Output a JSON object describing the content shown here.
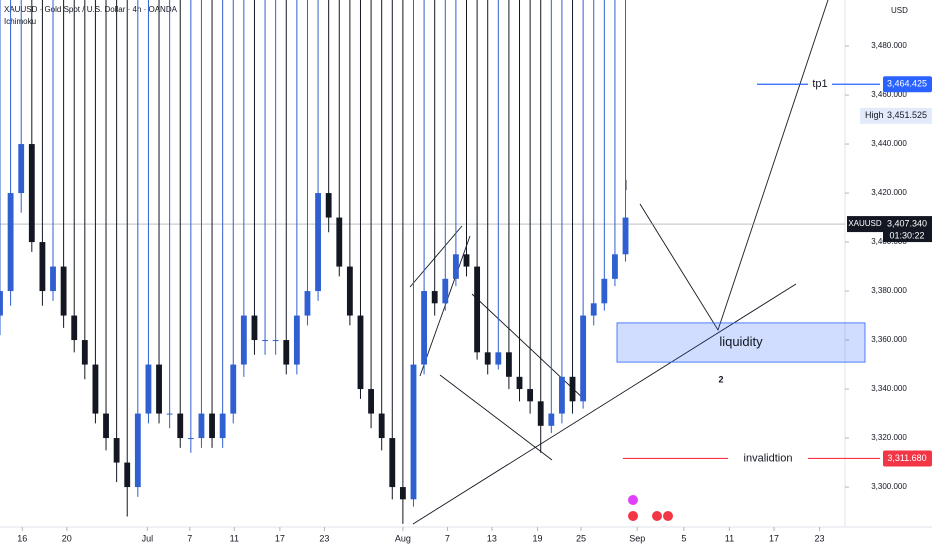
{
  "chart_data": {
    "type": "candlestick",
    "title": "XAUUSD · Gold Spot / U.S. Dollar · 4h · OANDA",
    "subtitle": "Ichimoku",
    "currency": "USD",
    "up_color": "#2f5fd0",
    "down_color": "#131722",
    "x": [
      0,
      1,
      2,
      3,
      4,
      5,
      6,
      7,
      8,
      9,
      10,
      11,
      12,
      13,
      14,
      15,
      16,
      17,
      18,
      19,
      20,
      21,
      22,
      23,
      24,
      25,
      26,
      27,
      28,
      29,
      30,
      31,
      32,
      33,
      34,
      35,
      36,
      37,
      38,
      39,
      40,
      41,
      42,
      43,
      44,
      45,
      46,
      47,
      48,
      49,
      50,
      51,
      52,
      53,
      54,
      55,
      56,
      57,
      58,
      59
    ],
    "open": [
      3370,
      3380,
      3420,
      3440,
      3400,
      3380,
      3390,
      3370,
      3360,
      3350,
      3330,
      3320,
      3310,
      3300,
      3330,
      3350,
      3330,
      3330,
      3320,
      3320,
      3330,
      3320,
      3330,
      3350,
      3370,
      3360,
      3360,
      3360,
      3350,
      3370,
      3380,
      3420,
      3410,
      3390,
      3370,
      3340,
      3330,
      3320,
      3300,
      3295,
      3350,
      3380,
      3375,
      3385,
      3395,
      3390,
      3355,
      3350,
      3355,
      3345,
      3340,
      3335,
      3325,
      3330,
      3345,
      3335,
      3370,
      3375,
      3385,
      3395
    ],
    "high": {
      "label": "High",
      "value": 3451.525,
      "value_label": "3,451.525"
    },
    "low": [
      3362,
      3374,
      3412,
      3396,
      3374,
      3376,
      3365,
      3355,
      3344,
      3326,
      3315,
      3302,
      3288,
      3296,
      3326,
      3326,
      3324,
      3316,
      3314,
      3316,
      3316,
      3316,
      3326,
      3345,
      3354,
      3354,
      3354,
      3346,
      3346,
      3366,
      3376,
      3404,
      3386,
      3366,
      3336,
      3324,
      3315,
      3295,
      3285,
      3292,
      3346,
      3370,
      3372,
      3382,
      3386,
      3352,
      3346,
      3348,
      3340,
      3335,
      3330,
      3314,
      3322,
      3326,
      3330,
      3332,
      3366,
      3372,
      3382,
      3392
    ],
    "close": [
      3380,
      3420,
      3440,
      3400,
      3380,
      3390,
      3370,
      3360,
      3350,
      3330,
      3320,
      3310,
      3300,
      3330,
      3350,
      3330,
      3330,
      3320,
      3320,
      3330,
      3320,
      3330,
      3350,
      3370,
      3360,
      3360,
      3360,
      3350,
      3370,
      3380,
      3420,
      3410,
      3390,
      3370,
      3340,
      3330,
      3320,
      3300,
      3295,
      3350,
      3380,
      3375,
      3385,
      3395,
      3390,
      3355,
      3350,
      3355,
      3345,
      3340,
      3335,
      3325,
      3330,
      3345,
      3335,
      3370,
      3375,
      3385,
      3395,
      3410
    ],
    "xlim": [
      0,
      79.7
    ],
    "xticks": [
      {
        "value": 2.1,
        "label": "16"
      },
      {
        "value": 6.3,
        "label": "20"
      },
      {
        "value": 13.9,
        "label": "Jul"
      },
      {
        "value": 17.9,
        "label": "7"
      },
      {
        "value": 22.1,
        "label": "11"
      },
      {
        "value": 26.4,
        "label": "17"
      },
      {
        "value": 30.6,
        "label": "23"
      },
      {
        "value": 38,
        "label": "Aug"
      },
      {
        "value": 42.2,
        "label": "7"
      },
      {
        "value": 46.4,
        "label": "13"
      },
      {
        "value": 50.7,
        "label": "19"
      },
      {
        "value": 54.8,
        "label": "25"
      },
      {
        "value": 60.1,
        "label": "Sep"
      },
      {
        "value": 64.5,
        "label": "5"
      },
      {
        "value": 68.8,
        "label": "11"
      },
      {
        "value": 73,
        "label": "17"
      },
      {
        "value": 77.3,
        "label": "23"
      }
    ],
    "ylim": [
      3283.7,
      3498.8
    ],
    "yticks": [
      {
        "value": 3300,
        "label": "3,300.000"
      },
      {
        "value": 3320,
        "label": "3,320.000"
      },
      {
        "value": 3340,
        "label": "3,340.000"
      },
      {
        "value": 3360,
        "label": "3,360.000"
      },
      {
        "value": 3380,
        "label": "3,380.000"
      },
      {
        "value": 3400,
        "label": "3,400.000"
      },
      {
        "value": 3420,
        "label": "3,420.000"
      },
      {
        "value": 3440,
        "label": "3,440.000"
      },
      {
        "value": 3460,
        "label": "3,460.000"
      },
      {
        "value": 3480,
        "label": "3,480.000"
      }
    ],
    "price_lines": [
      {
        "label": "tp1",
        "value": 3464.425,
        "value_label": "3,464.425",
        "color": "#2962ff"
      },
      {
        "label": "invalidtion",
        "value": 3311.68,
        "value_label": "3,311.680",
        "color": "#f23645"
      }
    ],
    "zone": {
      "label": "liquidity",
      "top": 3367,
      "bottom": 3351,
      "color": "#2962ff"
    },
    "zone_note": "2",
    "last_price": {
      "name": "XAUUSD",
      "value": 3407.34,
      "value_label": "3,407.340",
      "countdown": "01:30:22"
    }
  }
}
